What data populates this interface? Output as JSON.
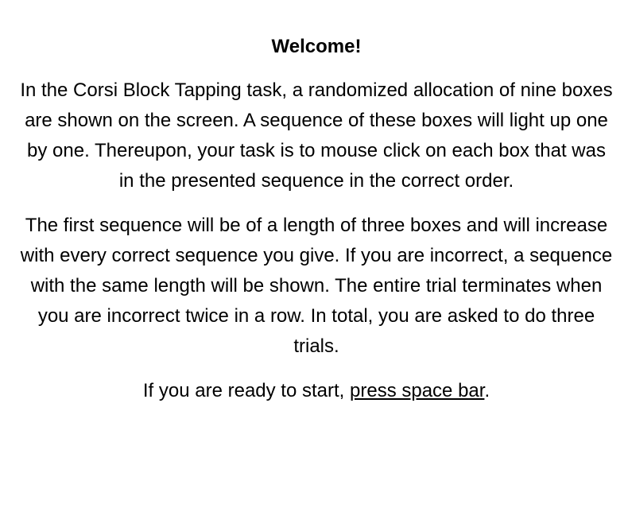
{
  "instructions": {
    "title": "Welcome!",
    "paragraph_1": "In the Corsi Block Tapping task, a randomized allocation of nine boxes are shown on the screen. A sequence of these boxes will light up one by one. Thereupon, your task is to mouse click on each box that was in the presented sequence in the correct order.",
    "paragraph_2": "The first sequence will be of a length of three boxes and will increase with every correct sequence you give. If you are incorrect, a sequence with the same length will be shown. The entire trial terminates when you are incorrect twice in a row. In total, you are asked to do three trials.",
    "start_prefix": "If you are ready to start, ",
    "start_key": "press space bar",
    "start_suffix": "."
  }
}
